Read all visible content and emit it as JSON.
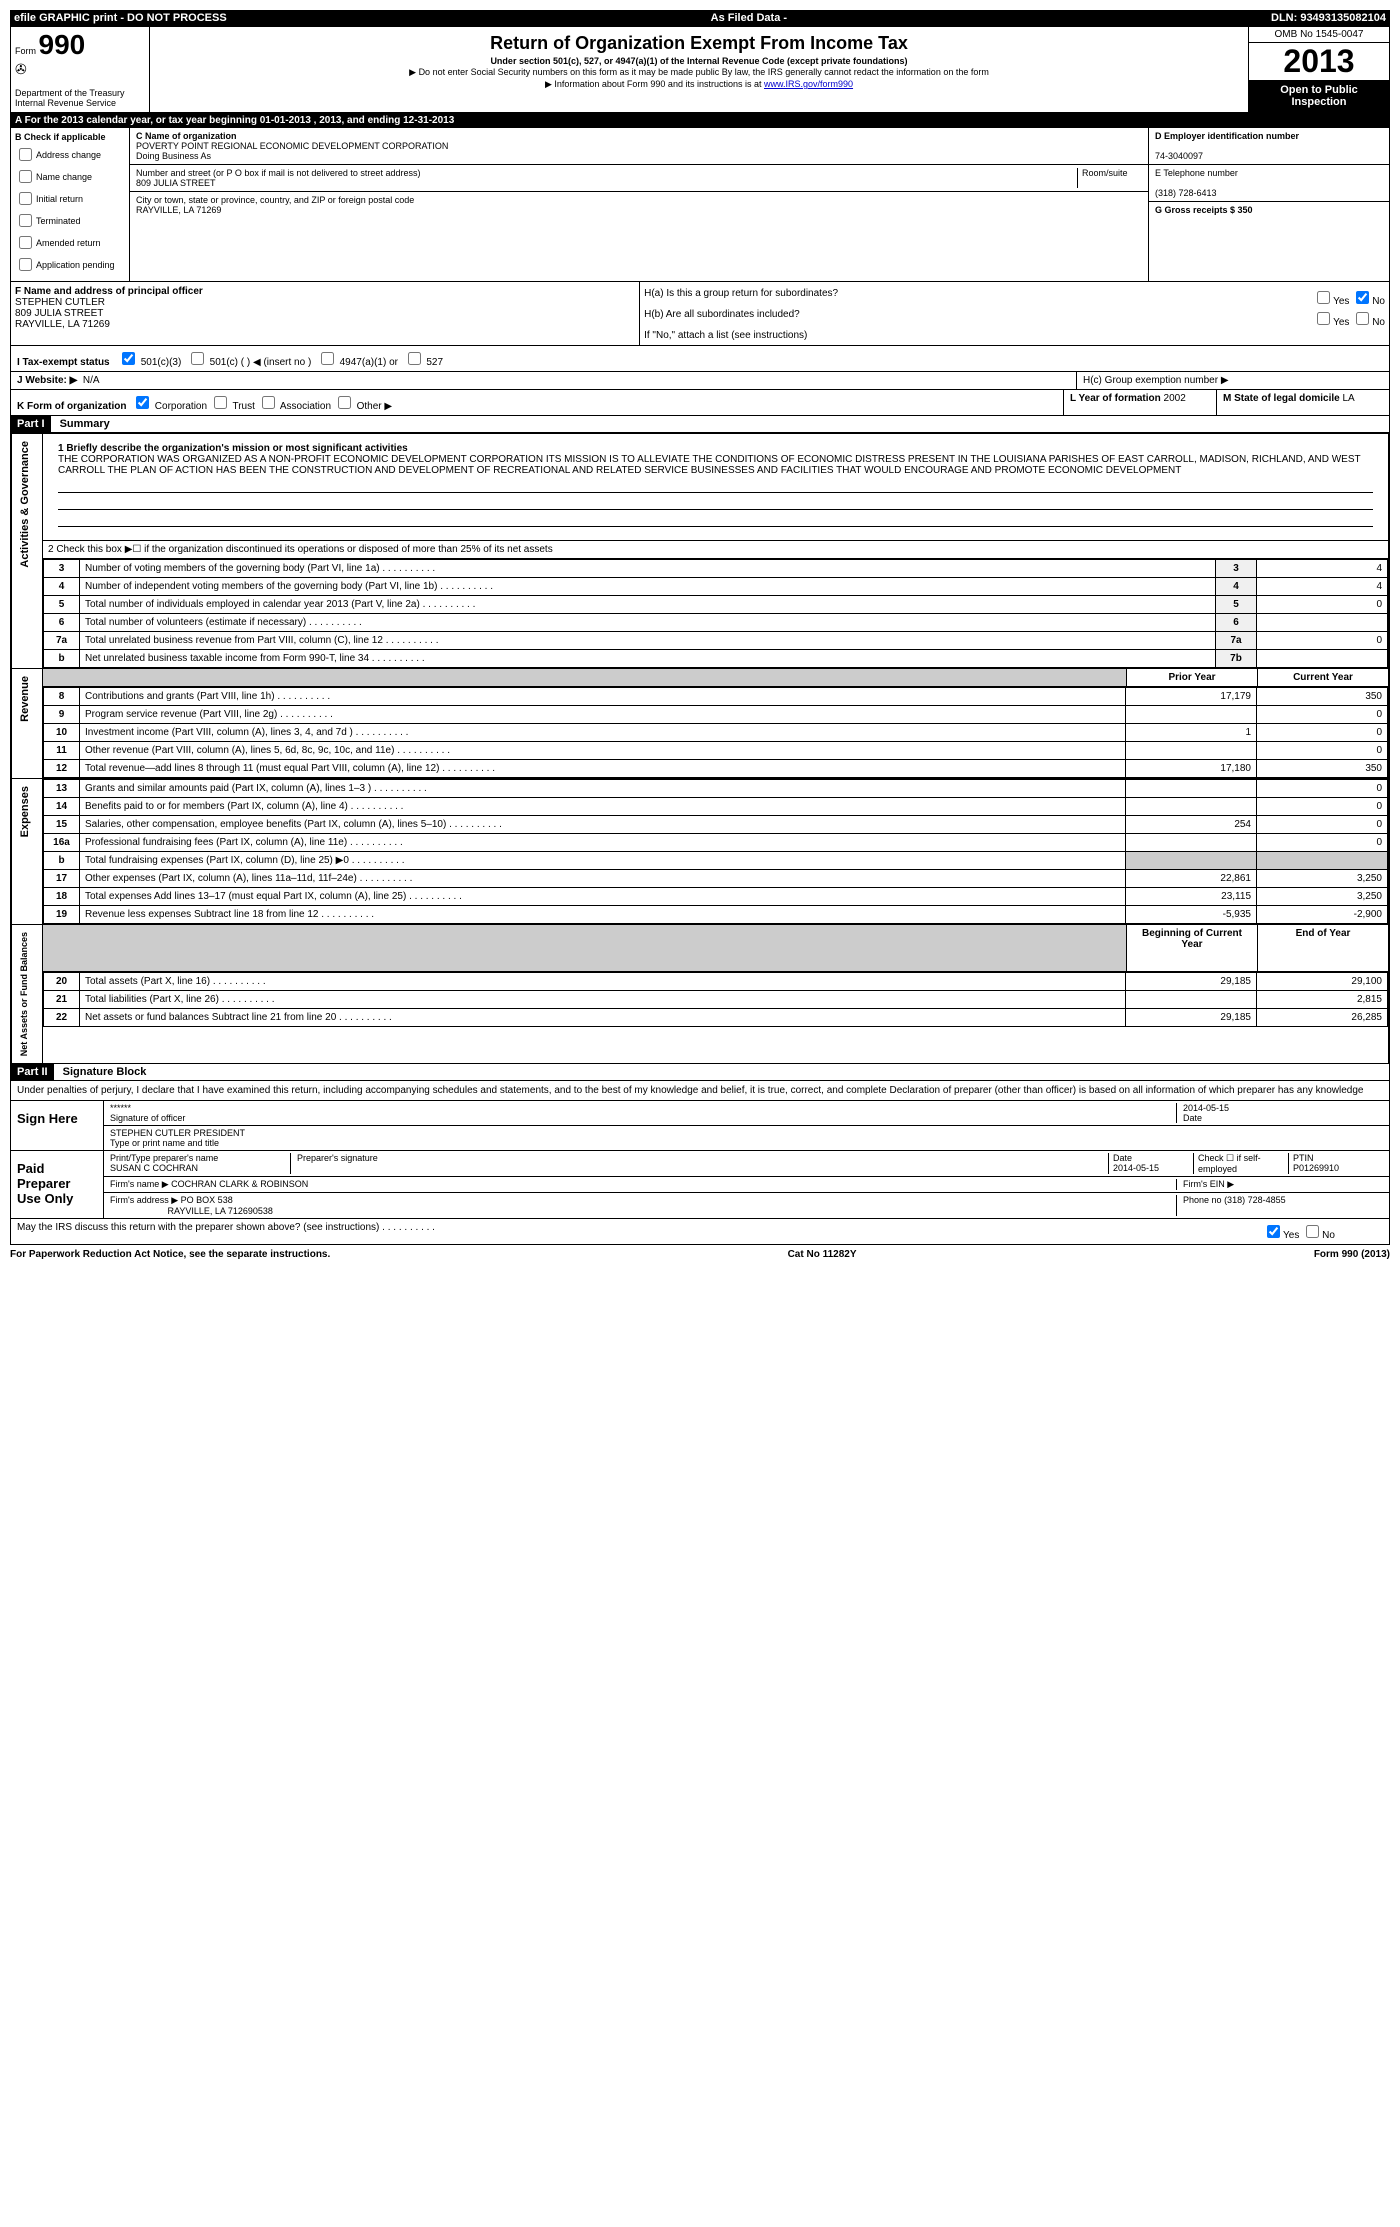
{
  "header_bar": {
    "left": "efile GRAPHIC print - DO NOT PROCESS",
    "mid": "As Filed Data -",
    "right": "DLN: 93493135082104"
  },
  "form": {
    "label": "Form",
    "number": "990",
    "dept1": "Department of the Treasury",
    "dept2": "Internal Revenue Service"
  },
  "title": {
    "main": "Return of Organization Exempt From Income Tax",
    "sub1": "Under section 501(c), 527, or 4947(a)(1) of the Internal Revenue Code (except private foundations)",
    "sub2": "▶ Do not enter Social Security numbers on this form as it may be made public By law, the IRS generally cannot redact the information on the form",
    "sub3_pre": "▶ Information about Form 990 and its instructions is at ",
    "sub3_link": "www.IRS.gov/form990"
  },
  "year_box": {
    "omb": "OMB No 1545-0047",
    "year": "2013",
    "open": "Open to Public Inspection"
  },
  "section_a": "A For the 2013 calendar year, or tax year beginning 01-01-2013    , 2013, and ending 12-31-2013",
  "section_b": {
    "label": "B Check if applicable",
    "items": [
      "Address change",
      "Name change",
      "Initial return",
      "Terminated",
      "Amended return",
      "Application pending"
    ]
  },
  "section_c": {
    "name_label": "C Name of organization",
    "name": "POVERTY POINT REGIONAL ECONOMIC DEVELOPMENT CORPORATION",
    "dba_label": "Doing Business As",
    "street_label": "Number and street (or P O  box if mail is not delivered to street address)",
    "room_label": "Room/suite",
    "street": "809 JULIA STREET",
    "city_label": "City or town, state or province, country, and ZIP or foreign postal code",
    "city": "RAYVILLE, LA  71269"
  },
  "section_d": {
    "ein_label": "D Employer identification number",
    "ein": "74-3040097",
    "phone_label": "E Telephone number",
    "phone": "(318) 728-6413",
    "receipts_label": "G Gross receipts $ 350"
  },
  "section_f": {
    "label": "F  Name and address of principal officer",
    "name": "STEPHEN CUTLER",
    "street": "809 JULIA STREET",
    "city": "RAYVILLE, LA  71269"
  },
  "section_h": {
    "ha": "H(a)  Is this a group return for subordinates?",
    "hb": "H(b)  Are all subordinates included?",
    "hb_note": "If \"No,\" attach a list  (see instructions)",
    "hc": "H(c)   Group exemption number ▶"
  },
  "row_i": {
    "label": "I   Tax-exempt status",
    "opts": [
      "501(c)(3)",
      "501(c) (  ) ◀ (insert no )",
      "4947(a)(1) or",
      "527"
    ]
  },
  "row_j": {
    "label": "J   Website: ▶",
    "value": "N/A"
  },
  "row_k": {
    "label": "K Form of organization",
    "opts": [
      "Corporation",
      "Trust",
      "Association",
      "Other ▶"
    ],
    "l_label": "L Year of formation",
    "l_value": "2002",
    "m_label": "M State of legal domicile",
    "m_value": "LA"
  },
  "part1": {
    "header": "Part I",
    "title": "Summary",
    "mission_label": "1   Briefly describe the organization's mission or most significant activities",
    "mission": "THE CORPORATION WAS ORGANIZED AS A NON-PROFIT ECONOMIC DEVELOPMENT CORPORATION  ITS MISSION IS TO ALLEVIATE THE CONDITIONS OF ECONOMIC DISTRESS PRESENT IN THE LOUISIANA PARISHES OF EAST CARROLL, MADISON, RICHLAND, AND WEST CARROLL  THE PLAN OF ACTION HAS BEEN THE CONSTRUCTION AND DEVELOPMENT OF RECREATIONAL AND RELATED SERVICE BUSINESSES AND FACILITIES THAT WOULD ENCOURAGE AND PROMOTE ECONOMIC DEVELOPMENT",
    "line2": "2   Check this box ▶☐ if the organization discontinued its operations or disposed of more than 25% of its net assets",
    "governance_label": "Activities & Governance",
    "revenue_label": "Revenue",
    "expenses_label": "Expenses",
    "netassets_label": "Net Assets or Fund Balances",
    "prior_year": "Prior Year",
    "current_year": "Current Year",
    "boy": "Beginning of Current Year",
    "eoy": "End of Year",
    "rows_gov": [
      {
        "n": "3",
        "d": "Number of voting members of the governing body (Part VI, line 1a)",
        "b": "3",
        "v": "4"
      },
      {
        "n": "4",
        "d": "Number of independent voting members of the governing body (Part VI, line 1b)",
        "b": "4",
        "v": "4"
      },
      {
        "n": "5",
        "d": "Total number of individuals employed in calendar year 2013 (Part V, line 2a)",
        "b": "5",
        "v": "0"
      },
      {
        "n": "6",
        "d": "Total number of volunteers (estimate if necessary)",
        "b": "6",
        "v": ""
      },
      {
        "n": "7a",
        "d": "Total unrelated business revenue from Part VIII, column (C), line 12",
        "b": "7a",
        "v": "0"
      },
      {
        "n": "b",
        "d": "Net unrelated business taxable income from Form 990-T, line 34",
        "b": "7b",
        "v": ""
      }
    ],
    "rows_rev": [
      {
        "n": "8",
        "d": "Contributions and grants (Part VIII, line 1h)",
        "p": "17,179",
        "c": "350"
      },
      {
        "n": "9",
        "d": "Program service revenue (Part VIII, line 2g)",
        "p": "",
        "c": "0"
      },
      {
        "n": "10",
        "d": "Investment income (Part VIII, column (A), lines 3, 4, and 7d )",
        "p": "1",
        "c": "0"
      },
      {
        "n": "11",
        "d": "Other revenue (Part VIII, column (A), lines 5, 6d, 8c, 9c, 10c, and 11e)",
        "p": "",
        "c": "0"
      },
      {
        "n": "12",
        "d": "Total revenue—add lines 8 through 11 (must equal Part VIII, column (A), line 12)",
        "p": "17,180",
        "c": "350"
      }
    ],
    "rows_exp": [
      {
        "n": "13",
        "d": "Grants and similar amounts paid (Part IX, column (A), lines 1–3 )",
        "p": "",
        "c": "0"
      },
      {
        "n": "14",
        "d": "Benefits paid to or for members (Part IX, column (A), line 4)",
        "p": "",
        "c": "0"
      },
      {
        "n": "15",
        "d": "Salaries, other compensation, employee benefits (Part IX, column (A), lines 5–10)",
        "p": "254",
        "c": "0"
      },
      {
        "n": "16a",
        "d": "Professional fundraising fees (Part IX, column (A), line 11e)",
        "p": "",
        "c": "0"
      },
      {
        "n": "b",
        "d": "Total fundraising expenses (Part IX, column (D), line 25) ▶0",
        "p": "grey",
        "c": "grey"
      },
      {
        "n": "17",
        "d": "Other expenses (Part IX, column (A), lines 11a–11d, 11f–24e)",
        "p": "22,861",
        "c": "3,250"
      },
      {
        "n": "18",
        "d": "Total expenses Add lines 13–17 (must equal Part IX, column (A), line 25)",
        "p": "23,115",
        "c": "3,250"
      },
      {
        "n": "19",
        "d": "Revenue less expenses Subtract line 18 from line 12",
        "p": "-5,935",
        "c": "-2,900"
      }
    ],
    "rows_net": [
      {
        "n": "20",
        "d": "Total assets (Part X, line 16)",
        "p": "29,185",
        "c": "29,100"
      },
      {
        "n": "21",
        "d": "Total liabilities (Part X, line 26)",
        "p": "",
        "c": "2,815"
      },
      {
        "n": "22",
        "d": "Net assets or fund balances Subtract line 21 from line 20",
        "p": "29,185",
        "c": "26,285"
      }
    ]
  },
  "part2": {
    "header": "Part II",
    "title": "Signature Block",
    "declaration": "Under penalties of perjury, I declare that I have examined this return, including accompanying schedules and statements, and to the best of my knowledge and belief, it is true, correct, and complete  Declaration of preparer (other than officer) is based on all information of which preparer has any knowledge",
    "sign_here": "Sign Here",
    "sig_stars": "******",
    "sig_date": "2014-05-15",
    "sig_officer_label": "Signature of officer",
    "date_label": "Date",
    "officer_name": "STEPHEN CUTLER PRESIDENT",
    "officer_type_label": "Type or print name and title",
    "paid_preparer": "Paid Preparer Use Only",
    "prep_name_label": "Print/Type preparer's name",
    "prep_name": "SUSAN C COCHRAN",
    "prep_sig_label": "Preparer's signature",
    "prep_date_label": "Date",
    "prep_date": "2014-05-15",
    "check_if": "Check ☐ if self-employed",
    "ptin_label": "PTIN",
    "ptin": "P01269910",
    "firm_name_label": "Firm's name     ▶",
    "firm_name": "COCHRAN CLARK & ROBINSON",
    "firm_ein_label": "Firm's EIN ▶",
    "firm_addr_label": "Firm's address ▶",
    "firm_addr1": "PO BOX 538",
    "firm_addr2": "RAYVILLE, LA  712690538",
    "firm_phone_label": "Phone no",
    "firm_phone": "(318) 728-4855",
    "discuss": "May the IRS discuss this return with the preparer shown above? (see instructions)"
  },
  "footer": {
    "left": "For Paperwork Reduction Act Notice, see the separate instructions.",
    "mid": "Cat No 11282Y",
    "right": "Form 990 (2013)"
  }
}
